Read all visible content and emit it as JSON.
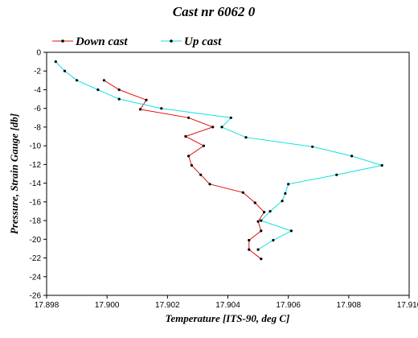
{
  "chart_data": {
    "type": "line",
    "title": "Cast nr 6062 0",
    "xlabel": "Temperature [ITS-90, deg C]",
    "ylabel": "Pressure, Strain Gauge [db]",
    "xlim": [
      17.898,
      17.91
    ],
    "ylim": [
      -26,
      0
    ],
    "x_ticks": [
      "17.898",
      "17.900",
      "17.902",
      "17.904",
      "17.906",
      "17.908",
      "17.910"
    ],
    "y_ticks": [
      "0",
      "-2",
      "-4",
      "-6",
      "-8",
      "-10",
      "-12",
      "-14",
      "-16",
      "-18",
      "-20",
      "-22",
      "-24",
      "-26"
    ],
    "grid": false,
    "legend_position": "top",
    "series": [
      {
        "name": "Down cast",
        "color": "#e01010",
        "points": [
          [
            17.8999,
            -3.0
          ],
          [
            17.9004,
            -4.0
          ],
          [
            17.9013,
            -5.1
          ],
          [
            17.9011,
            -6.1
          ],
          [
            17.9027,
            -7.0
          ],
          [
            17.9035,
            -8.0
          ],
          [
            17.9026,
            -9.0
          ],
          [
            17.9032,
            -10.0
          ],
          [
            17.9027,
            -11.1
          ],
          [
            17.9028,
            -12.1
          ],
          [
            17.9031,
            -13.1
          ],
          [
            17.9034,
            -14.1
          ],
          [
            17.9045,
            -15.0
          ],
          [
            17.9049,
            -16.1
          ],
          [
            17.9052,
            -17.1
          ],
          [
            17.905,
            -18.1
          ],
          [
            17.9051,
            -19.1
          ],
          [
            17.9047,
            -20.1
          ],
          [
            17.9047,
            -21.1
          ],
          [
            17.9051,
            -22.1
          ]
        ]
      },
      {
        "name": "Up cast",
        "color": "#10e0e0",
        "points": [
          [
            17.8983,
            -1.0
          ],
          [
            17.8986,
            -2.0
          ],
          [
            17.899,
            -3.0
          ],
          [
            17.8997,
            -4.0
          ],
          [
            17.9004,
            -5.0
          ],
          [
            17.9018,
            -6.0
          ],
          [
            17.9041,
            -7.0
          ],
          [
            17.9038,
            -8.0
          ],
          [
            17.9046,
            -9.1
          ],
          [
            17.9068,
            -10.1
          ],
          [
            17.9081,
            -11.1
          ],
          [
            17.9091,
            -12.1
          ],
          [
            17.9076,
            -13.1
          ],
          [
            17.906,
            -14.1
          ],
          [
            17.9059,
            -15.1
          ],
          [
            17.9058,
            -15.9
          ],
          [
            17.9054,
            -17.0
          ],
          [
            17.9051,
            -18.0
          ],
          [
            17.9061,
            -19.1
          ],
          [
            17.9055,
            -20.1
          ],
          [
            17.905,
            -21.1
          ]
        ]
      }
    ]
  }
}
